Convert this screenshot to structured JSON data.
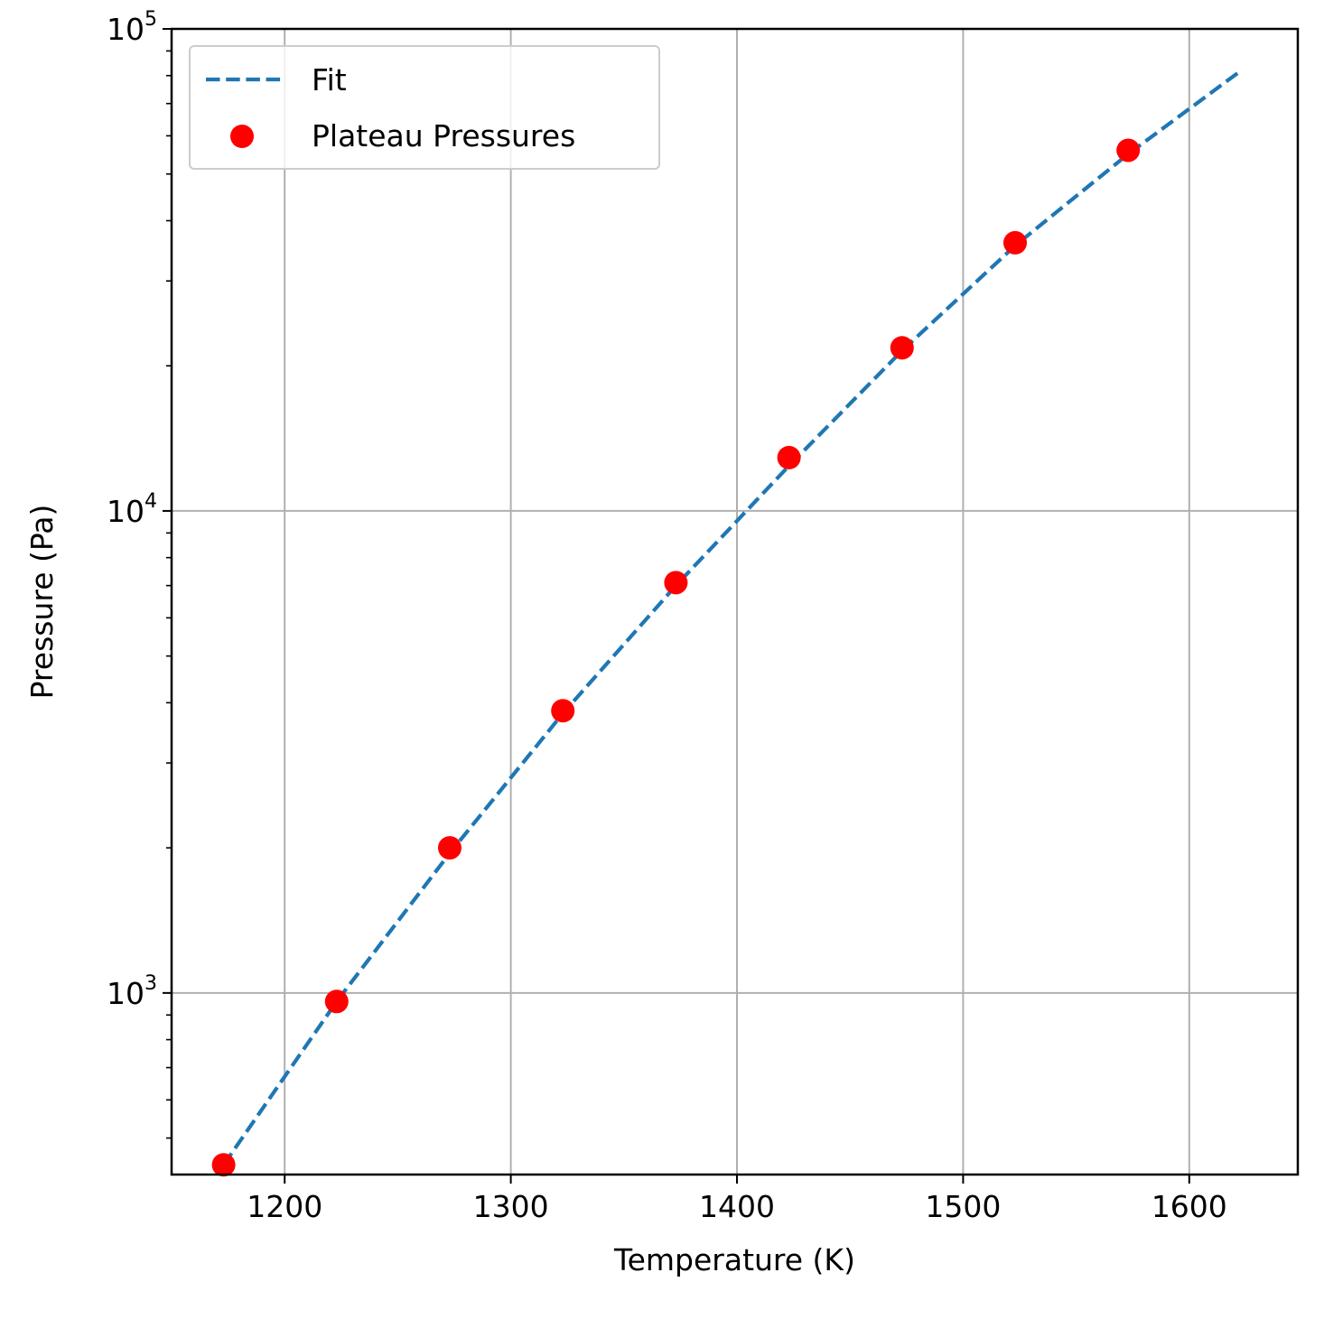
{
  "chart_data": {
    "type": "scatter",
    "title": "",
    "xlabel": "Temperature (K)",
    "ylabel": "Pressure (Pa)",
    "xlim": [
      1150,
      1648
    ],
    "ylim": [
      420,
      100000
    ],
    "yscale": "log",
    "grid": true,
    "legend_position": "upper-left",
    "x_ticks": [
      1200,
      1300,
      1400,
      1500,
      1600
    ],
    "x_tick_labels": [
      "1200",
      "1300",
      "1400",
      "1500",
      "1600"
    ],
    "y_ticks": [
      1000,
      10000,
      100000
    ],
    "y_tick_labels": [
      {
        "base": "10",
        "exp": "3"
      },
      {
        "base": "10",
        "exp": "4"
      },
      {
        "base": "10",
        "exp": "5"
      }
    ],
    "series": [
      {
        "name": "Fit",
        "kind": "line",
        "style": "dashed",
        "color": "#1f77b4",
        "x": [
          1173,
          1223,
          1273,
          1323,
          1373,
          1423,
          1473,
          1523,
          1573,
          1623
        ],
        "y": [
          440,
          960,
          1950,
          3800,
          7000,
          12400,
          21500,
          35500,
          55000,
          82000
        ]
      },
      {
        "name": "Plateau Pressures",
        "kind": "scatter",
        "color": "#ff0000",
        "x": [
          1173,
          1223,
          1273,
          1323,
          1373,
          1423,
          1473,
          1523,
          1573
        ],
        "y": [
          440,
          960,
          2000,
          3850,
          7100,
          12900,
          21800,
          36000,
          56000
        ]
      }
    ]
  }
}
